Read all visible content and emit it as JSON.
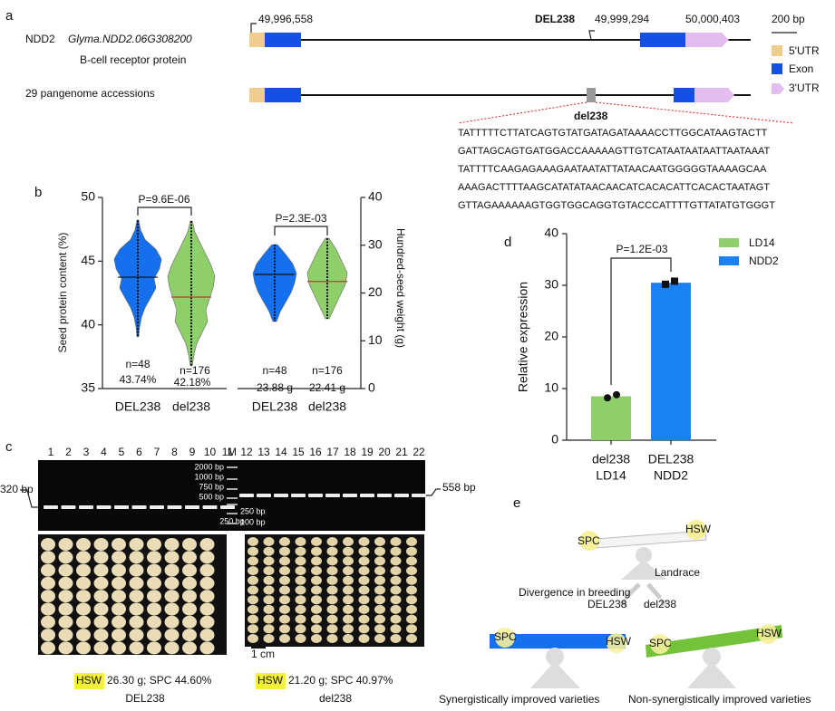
{
  "panel_labels": [
    "a",
    "b",
    "c",
    "d",
    "e"
  ],
  "a": {
    "gene_prefix": "NDD2",
    "gene_name": "Glyma.NDD2.06G308200",
    "protein": "B-cell receptor protein",
    "pangenome": "29 pangenome accessions",
    "coord_start": "49,996,558",
    "del_label": "DEL238",
    "coord_del": "49,999,294",
    "coord_end": "50,000,403",
    "scale": "200 bp",
    "legend": [
      "5'UTR",
      "Exon",
      "3'UTR"
    ],
    "del_title": "del238",
    "sequence": [
      "TATTTTTCTTATCAGTGTATGATAGATAAAACCTTGGCATAAGTACTT",
      "GATTAGCAGTGATGGACCAAAAAGTTGTCATAATAATAATTAATAAAT",
      "TATTTTCAAGAGAAAGAATAATATTATAACAATGGGGGTAAAAGCAA",
      "AAAGACTTTTAAGCATATATAACAACATCACACATTCACACTAATAGT",
      "GTTAGAAAAAAGTGGTGGCAGGTGTACCCATTTTGTTATATGTGGGT"
    ]
  },
  "b": {
    "ylabel": "Seed protein content (%)",
    "y2label": "Hundred-seed weight (g)",
    "ylim": [
      35,
      50
    ],
    "yticks": [
      35,
      40,
      45,
      50
    ],
    "y2lim": [
      0,
      40
    ],
    "y2ticks": [
      0,
      10,
      20,
      30,
      40
    ],
    "p_left": "P=9.6E-06",
    "p_right": "P=2.3E-03",
    "categories": [
      "DEL238",
      "del238",
      "DEL238",
      "del238"
    ],
    "n_labels": [
      "n=48",
      "n=176",
      "n=48",
      "n=176"
    ],
    "values": [
      43.74,
      42.18,
      23.88,
      22.41
    ],
    "value_labels": [
      "43.74%",
      "42.18%",
      "23.88 g",
      "22.41 g"
    ],
    "colors": [
      "#1570ee",
      "#8fcf6a",
      "#1570ee",
      "#8fcf6a"
    ]
  },
  "c": {
    "lanes": [
      "1",
      "2",
      "3",
      "4",
      "5",
      "6",
      "7",
      "8",
      "9",
      "10",
      "11",
      "M",
      "12",
      "13",
      "14",
      "15",
      "16",
      "17",
      "18",
      "19",
      "20",
      "21",
      "22"
    ],
    "ladder_upper": [
      "2000 bp",
      "1000 bp",
      "750 bp",
      "500 bp"
    ],
    "ladder_lower": [
      "250 bp",
      "100 bp"
    ],
    "left_band": "320 bp",
    "right_band": "558 bp",
    "scale": "1 cm",
    "captions": [
      {
        "hl": "HSW",
        "text": "26.30 g; SPC 44.60%",
        "group": "DEL238"
      },
      {
        "hl": "HSW",
        "text": "21.20 g; SPC 40.97%",
        "group": "del238"
      }
    ]
  },
  "d": {
    "ylabel": "Relative expression",
    "ylim": [
      0,
      40
    ],
    "yticks": [
      0,
      10,
      20,
      30,
      40
    ],
    "p_label": "P=1.2E-03",
    "categories": [
      [
        "del238",
        "LD14"
      ],
      [
        "DEL238",
        "NDD2"
      ]
    ],
    "series": [
      {
        "name": "LD14",
        "color": "#8fcf6a",
        "values": [
          8.5
        ],
        "points": [
          8.2,
          8.8
        ]
      },
      {
        "name": "NDD2",
        "color": "#1a82f2",
        "values": [
          30.5
        ],
        "points": [
          30.2,
          30.8
        ]
      }
    ]
  },
  "e": {
    "top": {
      "left": "SPC",
      "right": "HSW",
      "label": "Landrace"
    },
    "divergence": "Divergence in breeding",
    "branches": [
      "DEL238",
      "del238"
    ],
    "left": {
      "left": "SPC",
      "right": "HSW",
      "caption": "Synergistically improved varieties"
    },
    "right": {
      "left": "SPC",
      "right": "HSW",
      "caption": "Non-synergistically improved varieties"
    }
  }
}
